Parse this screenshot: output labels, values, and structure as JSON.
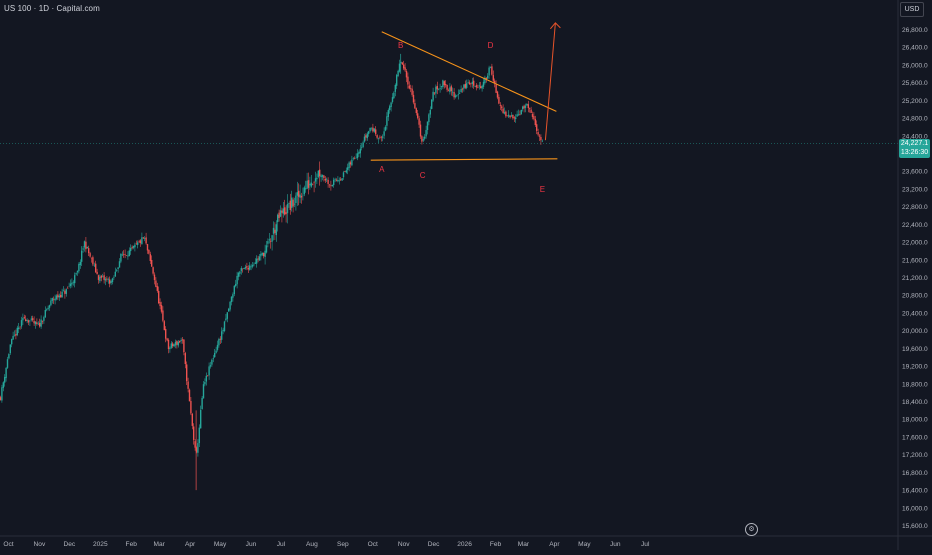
{
  "header": {
    "title": "US 100 · 1D · Capital.com",
    "currency": "USD"
  },
  "last_price": {
    "value": "24,227.1",
    "countdown": "13:26:30"
  },
  "annotations": {
    "wave_labels": [
      "A",
      "B",
      "C",
      "D",
      "E"
    ]
  },
  "colors": {
    "background": "#131722",
    "up": "#26a69a",
    "down": "#ef5350",
    "trendline": "#f7931a",
    "arrow": "#e8542a",
    "label": "#f23645",
    "axis_text": "#b2b5be"
  },
  "icons": {
    "settings": "settings-icon"
  },
  "chart_data": {
    "type": "candlestick",
    "title": "US 100 · 1D · Capital.com",
    "xlabel": "",
    "ylabel": "USD",
    "ylim": [
      15400,
      27000
    ],
    "x_tick_labels": [
      "Oct",
      "Nov",
      "Dec",
      "2025",
      "Feb",
      "Mar",
      "Apr",
      "May",
      "Jun",
      "Jul",
      "Aug",
      "Sep",
      "Oct",
      "Nov",
      "Dec",
      "2026",
      "Feb",
      "Mar",
      "Apr",
      "May",
      "Jun",
      "Jul"
    ],
    "y_tick_labels": [
      "26,800.0",
      "26,400.0",
      "26,000.0",
      "25,600.0",
      "25,200.0",
      "24,800.0",
      "24,400.0",
      "24,000.0",
      "23,600.0",
      "23,200.0",
      "22,800.0",
      "22,400.0",
      "22,000.0",
      "21,600.0",
      "21,200.0",
      "20,800.0",
      "20,400.0",
      "20,000.0",
      "19,600.0",
      "19,200.0",
      "18,800.0",
      "18,400.0",
      "18,000.0",
      "17,600.0",
      "17,200.0",
      "16,800.0",
      "16,400.0",
      "16,000.0",
      "15,600.0"
    ],
    "grid": false,
    "close_path": [
      [
        "2024-09-23",
        18500
      ],
      [
        "2024-10-03",
        19700
      ],
      [
        "2024-10-17",
        20300
      ],
      [
        "2024-10-31",
        20100
      ],
      [
        "2024-11-14",
        20700
      ],
      [
        "2024-11-28",
        20900
      ],
      [
        "2024-12-09",
        21300
      ],
      [
        "2024-12-16",
        22000
      ],
      [
        "2024-12-30",
        21200
      ],
      [
        "2025-01-13",
        21100
      ],
      [
        "2025-01-22",
        21700
      ],
      [
        "2025-02-01",
        21800
      ],
      [
        "2025-02-14",
        22100
      ],
      [
        "2025-02-24",
        21200
      ],
      [
        "2025-03-10",
        19600
      ],
      [
        "2025-03-24",
        19800
      ],
      [
        "2025-04-07",
        17100
      ],
      [
        "2025-04-14",
        18700
      ],
      [
        "2025-04-24",
        19400
      ],
      [
        "2025-05-05",
        20100
      ],
      [
        "2025-05-19",
        21300
      ],
      [
        "2025-06-02",
        21500
      ],
      [
        "2025-06-16",
        21800
      ],
      [
        "2025-06-30",
        22600
      ],
      [
        "2025-07-14",
        22900
      ],
      [
        "2025-07-28",
        23300
      ],
      [
        "2025-08-08",
        23600
      ],
      [
        "2025-08-20",
        23300
      ],
      [
        "2025-09-01",
        23500
      ],
      [
        "2025-09-15",
        24000
      ],
      [
        "2025-09-29",
        24600
      ],
      [
        "2025-10-10",
        24300
      ],
      [
        "2025-10-24",
        25600
      ],
      [
        "2025-10-29",
        26100
      ],
      [
        "2025-11-10",
        25300
      ],
      [
        "2025-11-20",
        24200
      ],
      [
        "2025-12-01",
        25400
      ],
      [
        "2025-12-11",
        25600
      ],
      [
        "2025-12-22",
        25300
      ],
      [
        "2026-01-05",
        25600
      ],
      [
        "2026-01-19",
        25500
      ],
      [
        "2026-01-27",
        26000
      ],
      [
        "2026-02-03",
        25200
      ],
      [
        "2026-02-12",
        24800
      ],
      [
        "2026-02-24",
        24900
      ],
      [
        "2026-03-04",
        25100
      ],
      [
        "2026-03-12",
        24700
      ],
      [
        "2026-03-20",
        24227
      ]
    ],
    "extremes": {
      "high": 26250,
      "low": 16400
    },
    "drawings": {
      "upper_trendline": [
        [
          "2025-10-10",
          26750
        ],
        [
          "2026-04-03",
          24950
        ]
      ],
      "lower_trendline": [
        [
          "2025-09-29",
          23850
        ],
        [
          "2026-04-04",
          23880
        ]
      ],
      "projection_arrow": [
        [
          "2026-03-23",
          24300
        ],
        [
          "2026-04-02",
          26950
        ]
      ],
      "points": [
        {
          "label": "A",
          "date": "2025-10-10",
          "price": 23850
        },
        {
          "label": "B",
          "date": "2025-10-29",
          "price": 26250
        },
        {
          "label": "C",
          "date": "2025-11-20",
          "price": 23900
        },
        {
          "label": "D",
          "date": "2026-01-27",
          "price": 26200
        },
        {
          "label": "E",
          "date": "2026-03-20",
          "price": 23700
        }
      ]
    }
  }
}
